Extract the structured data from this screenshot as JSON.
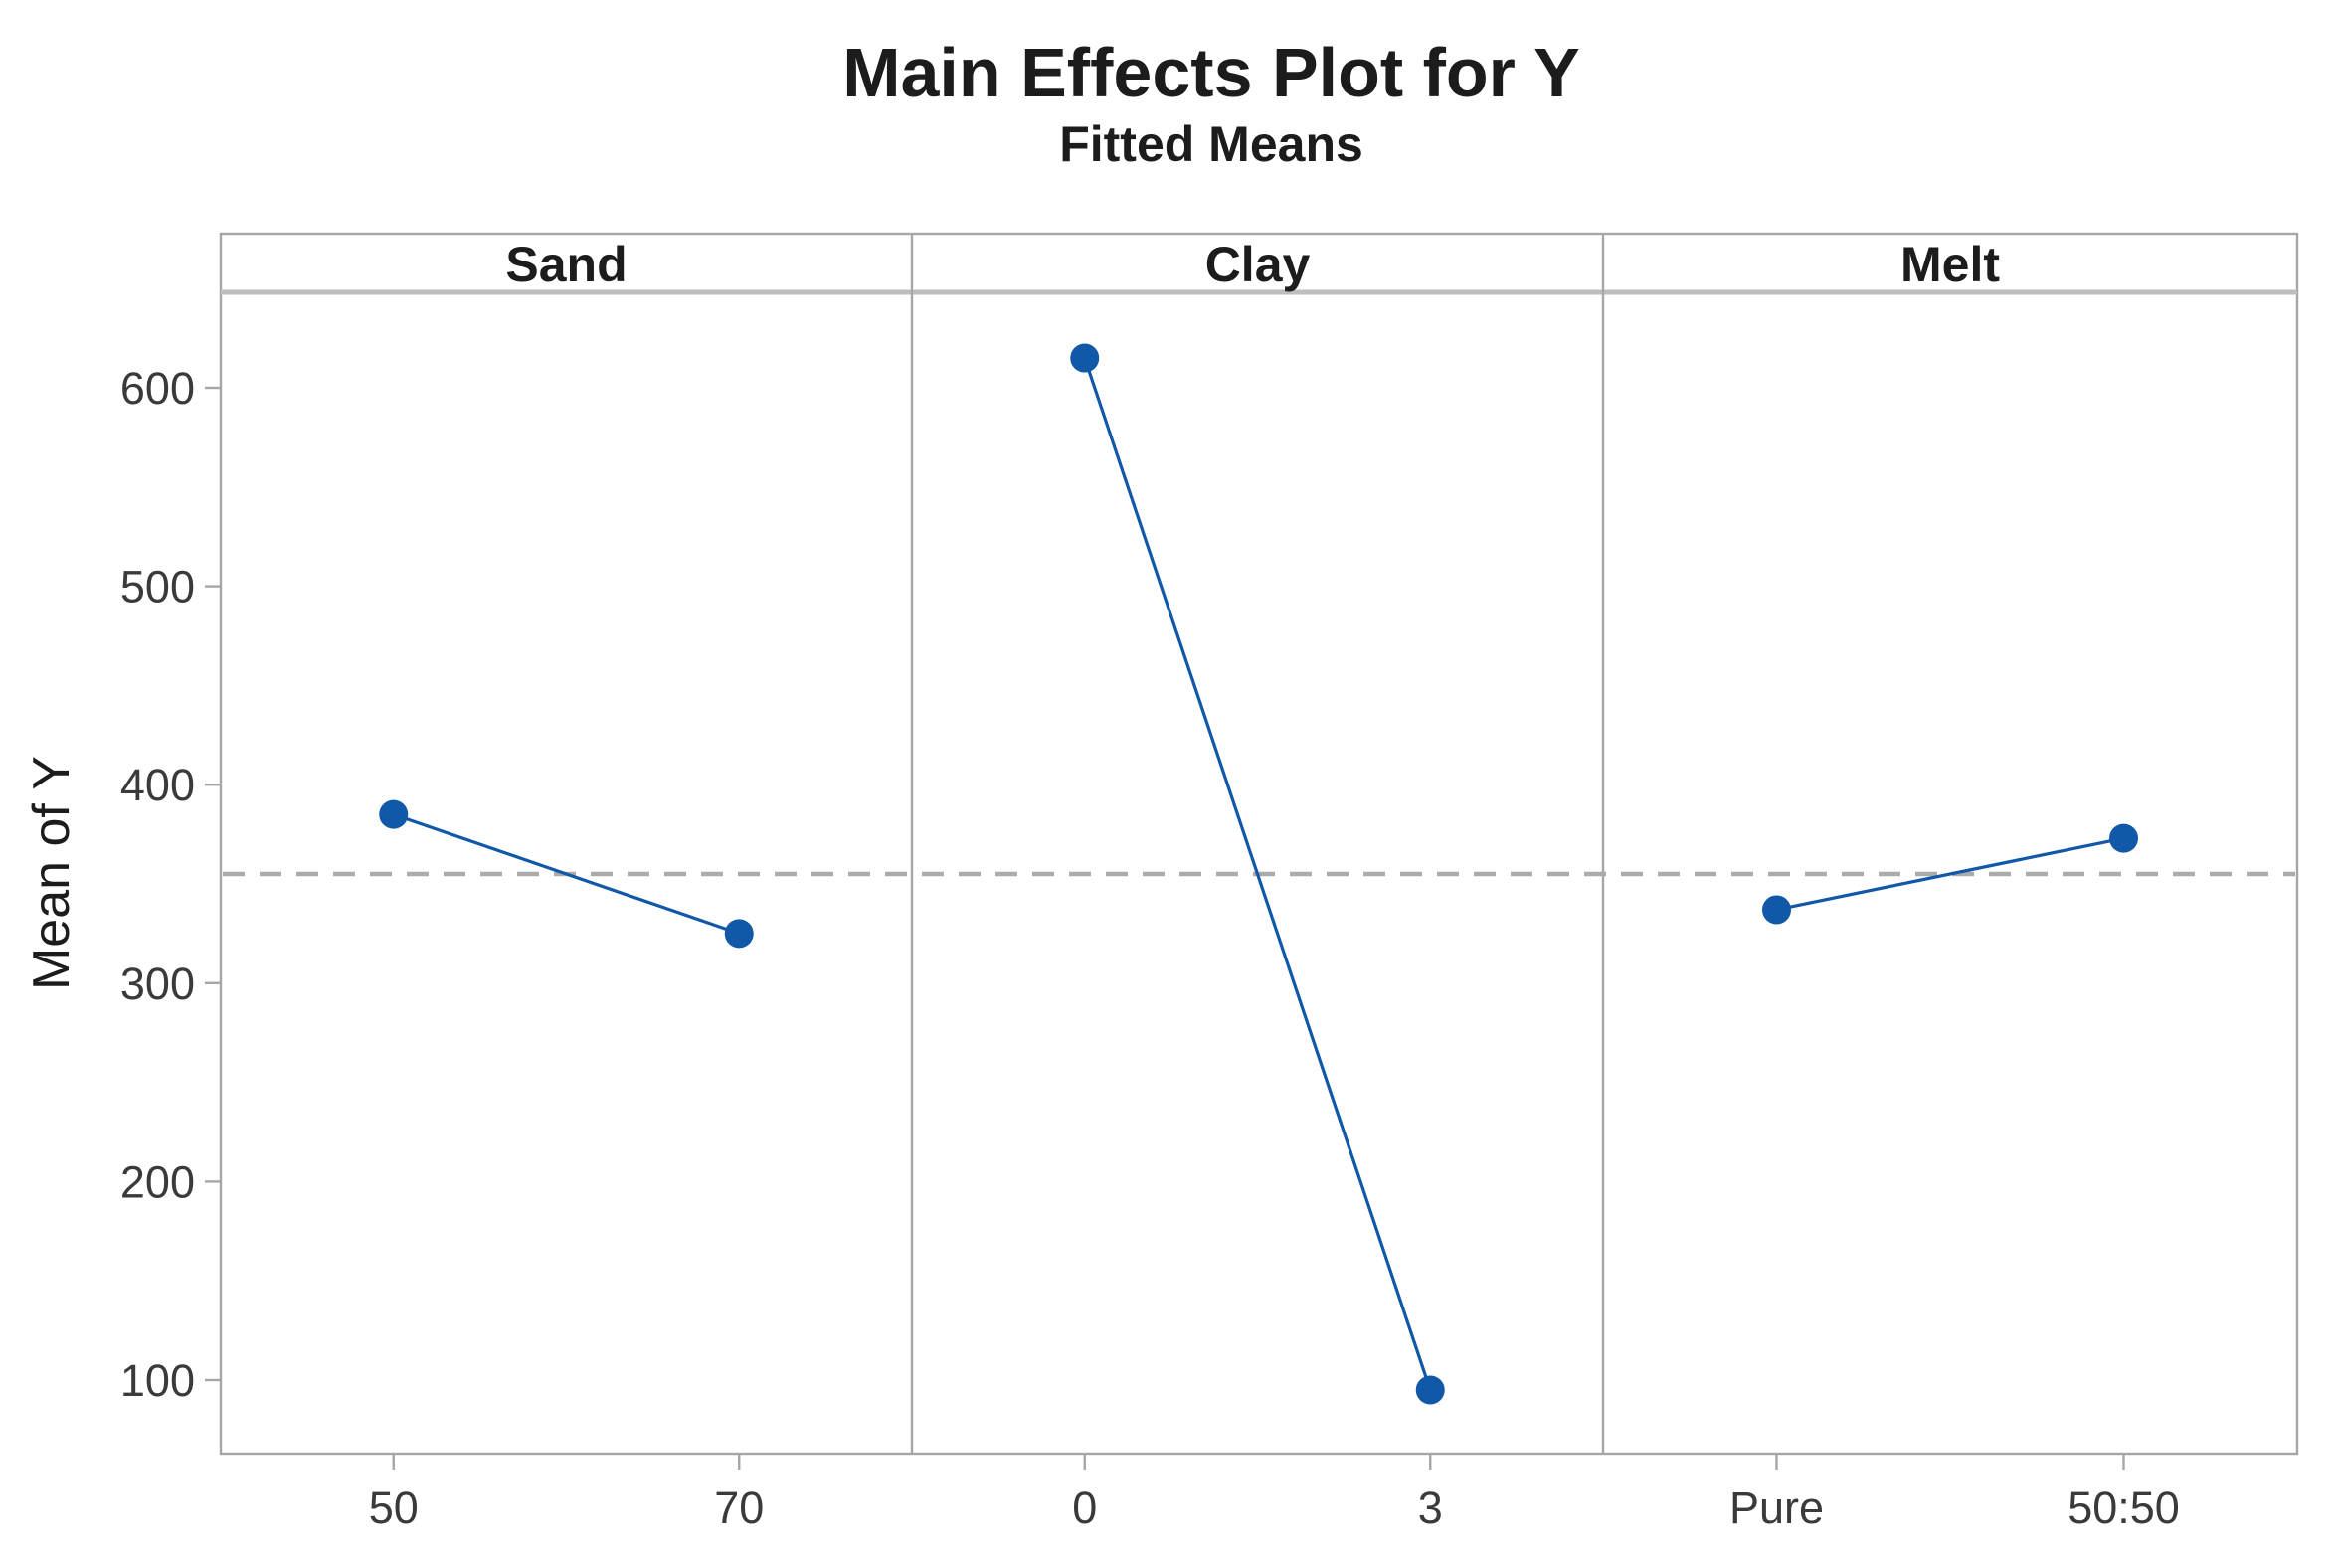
{
  "chart_data": {
    "type": "line",
    "title": "Main Effects Plot for Y",
    "subtitle": "Fitted Means",
    "ylabel": "Mean of Y",
    "ylim": [
      63,
      648
    ],
    "y_ticks": [
      100,
      200,
      300,
      400,
      500,
      600
    ],
    "grid": "off",
    "legend": "none",
    "reference_line": {
      "value": 355,
      "style": "dashed"
    },
    "panels": [
      {
        "label": "Sand",
        "categories": [
          "50",
          "70"
        ],
        "values": [
          385,
          325
        ]
      },
      {
        "label": "Clay",
        "categories": [
          "0",
          "3"
        ],
        "values": [
          615,
          95
        ]
      },
      {
        "label": "Melt",
        "categories": [
          "Pure",
          "50:50"
        ],
        "values": [
          337,
          373
        ]
      }
    ]
  },
  "colors": {
    "series_blue": "#1158A8",
    "reference_gray": "#ABABAB",
    "frame_gray": "#A6A6A6",
    "separator_gray": "#BDBDBD",
    "title_text": "#1C1C1C",
    "tick_text": "#3A3A3A"
  }
}
